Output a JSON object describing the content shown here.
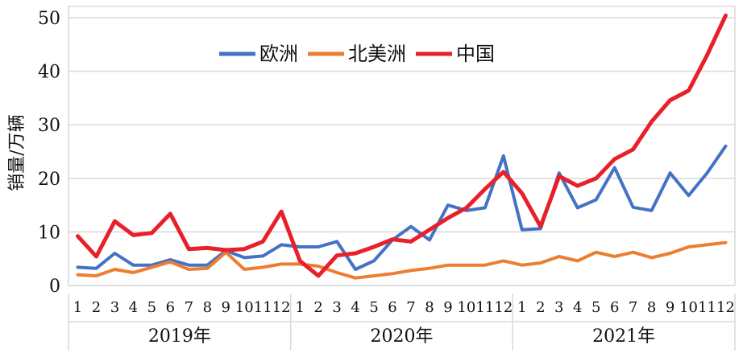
{
  "chart_data": {
    "type": "line",
    "title": "",
    "ylabel": "销量/万辆",
    "xlabel": "",
    "ylim": [
      0,
      50
    ],
    "yticks": [
      0,
      10,
      20,
      30,
      40,
      50
    ],
    "grid": true,
    "legend_position": "top-center",
    "groups": [
      "2019年",
      "2020年",
      "2021年"
    ],
    "months": [
      "1",
      "2",
      "3",
      "4",
      "5",
      "6",
      "7",
      "8",
      "9",
      "10",
      "11",
      "12"
    ],
    "series": [
      {
        "name": "欧洲",
        "color": "#4472c4",
        "values": [
          3.4,
          3.2,
          6.0,
          3.8,
          3.8,
          4.8,
          3.8,
          3.8,
          6.5,
          5.2,
          5.5,
          7.6,
          7.2,
          7.2,
          8.2,
          3.0,
          4.6,
          8.5,
          11.0,
          8.5,
          15.0,
          14.0,
          14.5,
          24.2,
          10.4,
          10.6,
          21.0,
          14.5,
          16.0,
          22.0,
          14.6,
          14.0,
          21.0,
          16.8,
          21.0,
          26.0
        ]
      },
      {
        "name": "北美洲",
        "color": "#ed7d31",
        "values": [
          2.0,
          1.8,
          3.0,
          2.4,
          3.4,
          4.4,
          3.0,
          3.2,
          6.2,
          3.0,
          3.4,
          4.0,
          4.0,
          3.6,
          2.4,
          1.4,
          1.8,
          2.2,
          2.8,
          3.2,
          3.8,
          3.8,
          3.8,
          4.6,
          3.8,
          4.2,
          5.4,
          4.6,
          6.2,
          5.4,
          6.2,
          5.2,
          6.0,
          7.2,
          7.6,
          8.0
        ]
      },
      {
        "name": "中国",
        "color": "#e8202a",
        "values": [
          9.2,
          5.4,
          12.0,
          9.4,
          9.8,
          13.4,
          6.8,
          7.0,
          6.6,
          6.8,
          8.2,
          13.8,
          4.6,
          1.8,
          5.6,
          6.0,
          7.2,
          8.6,
          8.2,
          10.4,
          12.6,
          14.5,
          18.0,
          21.2,
          17.2,
          11.0,
          20.4,
          18.6,
          20.0,
          23.6,
          25.4,
          30.6,
          34.6,
          36.4,
          43.0,
          50.4
        ]
      }
    ]
  }
}
